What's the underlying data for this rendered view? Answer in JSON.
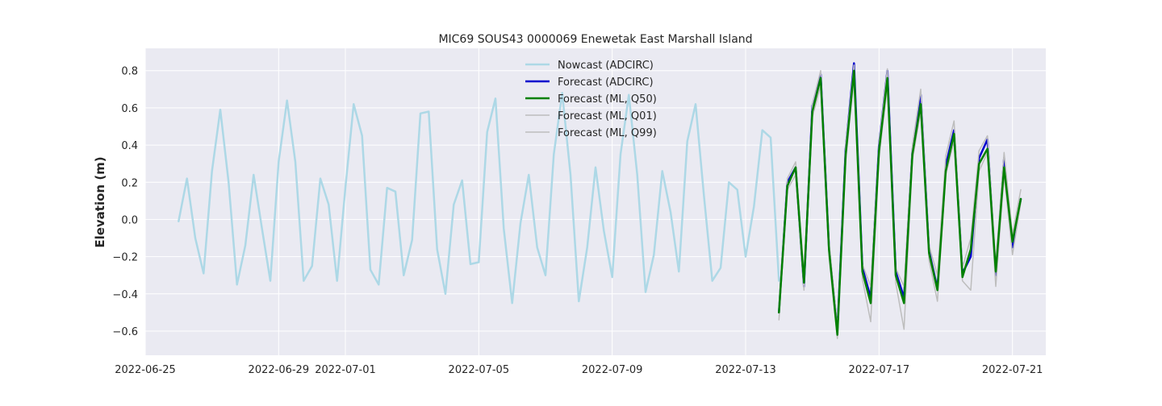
{
  "chart_data": {
    "type": "line",
    "title": "MIC69 SOUS43 0000069 Enewetak East Marshall Island",
    "xlabel": "",
    "ylabel": "Elevation (m)",
    "x_type": "date",
    "xlim": [
      "2022-06-25",
      "2022-07-22"
    ],
    "ylim": [
      -0.73,
      0.92
    ],
    "xticks": [
      "2022-06-25",
      "2022-06-29",
      "2022-07-01",
      "2022-07-05",
      "2022-07-09",
      "2022-07-13",
      "2022-07-17",
      "2022-07-21"
    ],
    "yticks": [
      -0.6,
      -0.4,
      -0.2,
      0.0,
      0.2,
      0.4,
      0.6,
      0.8
    ],
    "ytick_labels": [
      "−0.6",
      "−0.4",
      "−0.2",
      "0.0",
      "0.2",
      "0.4",
      "0.6",
      "0.8"
    ],
    "grid": true,
    "legend_position": "top-center",
    "series": [
      {
        "name": "Nowcast (ADCIRC)",
        "color": "#add8e6",
        "x": [
          "2022-06-26T00:00",
          "2022-06-26T06:00",
          "2022-06-26T12:00",
          "2022-06-26T18:00",
          "2022-06-27T00:00",
          "2022-06-27T06:00",
          "2022-06-27T12:00",
          "2022-06-27T18:00",
          "2022-06-28T00:00",
          "2022-06-28T06:00",
          "2022-06-28T12:00",
          "2022-06-28T18:00",
          "2022-06-29T00:00",
          "2022-06-29T06:00",
          "2022-06-29T12:00",
          "2022-06-29T18:00",
          "2022-06-30T00:00",
          "2022-06-30T06:00",
          "2022-06-30T12:00",
          "2022-06-30T18:00",
          "2022-07-01T00:00",
          "2022-07-01T06:00",
          "2022-07-01T12:00",
          "2022-07-01T18:00",
          "2022-07-02T00:00",
          "2022-07-02T06:00",
          "2022-07-02T12:00",
          "2022-07-02T18:00",
          "2022-07-03T00:00",
          "2022-07-03T06:00",
          "2022-07-03T12:00",
          "2022-07-03T18:00",
          "2022-07-04T00:00",
          "2022-07-04T06:00",
          "2022-07-04T12:00",
          "2022-07-04T18:00",
          "2022-07-05T00:00",
          "2022-07-05T06:00",
          "2022-07-05T12:00",
          "2022-07-05T18:00",
          "2022-07-06T00:00",
          "2022-07-06T06:00",
          "2022-07-06T12:00",
          "2022-07-06T18:00",
          "2022-07-07T00:00",
          "2022-07-07T06:00",
          "2022-07-07T12:00",
          "2022-07-07T18:00",
          "2022-07-08T00:00",
          "2022-07-08T06:00",
          "2022-07-08T12:00",
          "2022-07-08T18:00",
          "2022-07-09T00:00",
          "2022-07-09T06:00",
          "2022-07-09T12:00",
          "2022-07-09T18:00",
          "2022-07-10T00:00",
          "2022-07-10T06:00",
          "2022-07-10T12:00",
          "2022-07-10T18:00",
          "2022-07-11T00:00",
          "2022-07-11T06:00",
          "2022-07-11T12:00",
          "2022-07-11T18:00",
          "2022-07-12T00:00",
          "2022-07-12T06:00",
          "2022-07-12T12:00",
          "2022-07-12T18:00",
          "2022-07-13T00:00",
          "2022-07-13T06:00",
          "2022-07-13T12:00",
          "2022-07-13T18:00",
          "2022-07-14T00:00"
        ],
        "y": [
          -0.01,
          0.22,
          -0.1,
          -0.29,
          0.26,
          0.59,
          0.2,
          -0.35,
          -0.14,
          0.24,
          -0.05,
          -0.33,
          0.31,
          0.64,
          0.31,
          -0.33,
          -0.25,
          0.22,
          0.08,
          -0.33,
          0.17,
          0.62,
          0.45,
          -0.27,
          -0.35,
          0.17,
          0.15,
          -0.3,
          -0.11,
          0.57,
          0.58,
          -0.16,
          -0.4,
          0.08,
          0.21,
          -0.24,
          -0.23,
          0.47,
          0.65,
          -0.05,
          -0.45,
          -0.02,
          0.24,
          -0.15,
          -0.3,
          0.35,
          0.68,
          0.24,
          -0.44,
          -0.15,
          0.28,
          -0.06,
          -0.31,
          0.35,
          0.67,
          0.24,
          -0.39,
          -0.19,
          0.26,
          0.04,
          -0.28,
          0.42,
          0.62,
          0.13,
          -0.33,
          -0.26,
          0.2,
          0.16,
          -0.2,
          0.07,
          0.48,
          0.44,
          -0.33
        ]
      },
      {
        "name": "Forecast (ADCIRC)",
        "color": "#0000cd",
        "x": [
          "2022-07-14T00:00",
          "2022-07-14T06:00",
          "2022-07-14T12:00",
          "2022-07-14T18:00",
          "2022-07-15T00:00",
          "2022-07-15T06:00",
          "2022-07-15T12:00",
          "2022-07-15T18:00",
          "2022-07-16T00:00",
          "2022-07-16T06:00",
          "2022-07-16T12:00",
          "2022-07-16T18:00",
          "2022-07-17T00:00",
          "2022-07-17T06:00",
          "2022-07-17T12:00",
          "2022-07-17T18:00",
          "2022-07-18T00:00",
          "2022-07-18T06:00",
          "2022-07-18T12:00",
          "2022-07-18T18:00",
          "2022-07-19T00:00",
          "2022-07-19T06:00",
          "2022-07-19T12:00",
          "2022-07-19T18:00",
          "2022-07-20T00:00",
          "2022-07-20T06:00",
          "2022-07-20T12:00",
          "2022-07-20T18:00",
          "2022-07-21T00:00",
          "2022-07-21T06:00"
        ],
        "y": [
          -0.5,
          0.2,
          0.28,
          -0.36,
          0.61,
          0.78,
          -0.15,
          -0.6,
          0.38,
          0.84,
          -0.26,
          -0.42,
          0.4,
          0.8,
          -0.28,
          -0.42,
          0.37,
          0.67,
          -0.17,
          -0.37,
          0.29,
          0.48,
          -0.29,
          -0.2,
          0.33,
          0.43,
          -0.3,
          0.33,
          -0.15,
          0.11
        ]
      },
      {
        "name": "Forecast (ML, Q50)",
        "color": "#008000",
        "x": [
          "2022-07-14T00:00",
          "2022-07-14T06:00",
          "2022-07-14T12:00",
          "2022-07-14T18:00",
          "2022-07-15T00:00",
          "2022-07-15T06:00",
          "2022-07-15T12:00",
          "2022-07-15T18:00",
          "2022-07-16T00:00",
          "2022-07-16T06:00",
          "2022-07-16T12:00",
          "2022-07-16T18:00",
          "2022-07-17T00:00",
          "2022-07-17T06:00",
          "2022-07-17T12:00",
          "2022-07-17T18:00",
          "2022-07-18T00:00",
          "2022-07-18T06:00",
          "2022-07-18T12:00",
          "2022-07-18T18:00",
          "2022-07-19T00:00",
          "2022-07-19T06:00",
          "2022-07-19T12:00",
          "2022-07-19T18:00",
          "2022-07-20T00:00",
          "2022-07-20T06:00",
          "2022-07-20T12:00",
          "2022-07-20T18:00",
          "2022-07-21T00:00",
          "2022-07-21T06:00"
        ],
        "y": [
          -0.5,
          0.18,
          0.28,
          -0.34,
          0.58,
          0.76,
          -0.16,
          -0.62,
          0.35,
          0.8,
          -0.28,
          -0.45,
          0.37,
          0.76,
          -0.3,
          -0.45,
          0.35,
          0.62,
          -0.18,
          -0.38,
          0.26,
          0.46,
          -0.31,
          -0.16,
          0.3,
          0.38,
          -0.28,
          0.28,
          -0.12,
          0.11
        ]
      },
      {
        "name": "Forecast (ML, Q01)",
        "color": "#bdbdbd",
        "x": [
          "2022-07-14T00:00",
          "2022-07-14T06:00",
          "2022-07-14T12:00",
          "2022-07-14T18:00",
          "2022-07-15T00:00",
          "2022-07-15T06:00",
          "2022-07-15T12:00",
          "2022-07-15T18:00",
          "2022-07-16T00:00",
          "2022-07-16T06:00",
          "2022-07-16T12:00",
          "2022-07-16T18:00",
          "2022-07-17T00:00",
          "2022-07-17T06:00",
          "2022-07-17T12:00",
          "2022-07-17T18:00",
          "2022-07-18T00:00",
          "2022-07-18T06:00",
          "2022-07-18T12:00",
          "2022-07-18T18:00",
          "2022-07-19T00:00",
          "2022-07-19T06:00",
          "2022-07-19T12:00",
          "2022-07-19T18:00",
          "2022-07-20T00:00",
          "2022-07-20T06:00",
          "2022-07-20T12:00",
          "2022-07-20T18:00",
          "2022-07-21T00:00",
          "2022-07-21T06:00"
        ],
        "y": [
          -0.54,
          0.16,
          0.24,
          -0.38,
          0.55,
          0.72,
          -0.2,
          -0.64,
          0.31,
          0.76,
          -0.32,
          -0.55,
          0.33,
          0.72,
          -0.34,
          -0.59,
          0.32,
          0.58,
          -0.22,
          -0.44,
          0.24,
          0.42,
          -0.33,
          -0.38,
          0.26,
          0.36,
          -0.36,
          0.24,
          -0.19,
          0.09
        ]
      },
      {
        "name": "Forecast (ML, Q99)",
        "color": "#bdbdbd",
        "x": [
          "2022-07-14T00:00",
          "2022-07-14T06:00",
          "2022-07-14T12:00",
          "2022-07-14T18:00",
          "2022-07-15T00:00",
          "2022-07-15T06:00",
          "2022-07-15T12:00",
          "2022-07-15T18:00",
          "2022-07-16T00:00",
          "2022-07-16T06:00",
          "2022-07-16T12:00",
          "2022-07-16T18:00",
          "2022-07-17T00:00",
          "2022-07-17T06:00",
          "2022-07-17T12:00",
          "2022-07-17T18:00",
          "2022-07-18T00:00",
          "2022-07-18T06:00",
          "2022-07-18T12:00",
          "2022-07-18T18:00",
          "2022-07-19T00:00",
          "2022-07-19T06:00",
          "2022-07-19T12:00",
          "2022-07-19T18:00",
          "2022-07-20T00:00",
          "2022-07-20T06:00",
          "2022-07-20T12:00",
          "2022-07-20T18:00",
          "2022-07-21T00:00",
          "2022-07-21T06:00"
        ],
        "y": [
          -0.46,
          0.22,
          0.31,
          -0.3,
          0.62,
          0.8,
          -0.12,
          -0.58,
          0.4,
          0.83,
          -0.24,
          -0.36,
          0.41,
          0.81,
          -0.26,
          -0.36,
          0.4,
          0.7,
          -0.14,
          -0.3,
          0.34,
          0.53,
          -0.26,
          -0.1,
          0.37,
          0.45,
          -0.24,
          0.36,
          -0.08,
          0.16
        ]
      }
    ]
  }
}
